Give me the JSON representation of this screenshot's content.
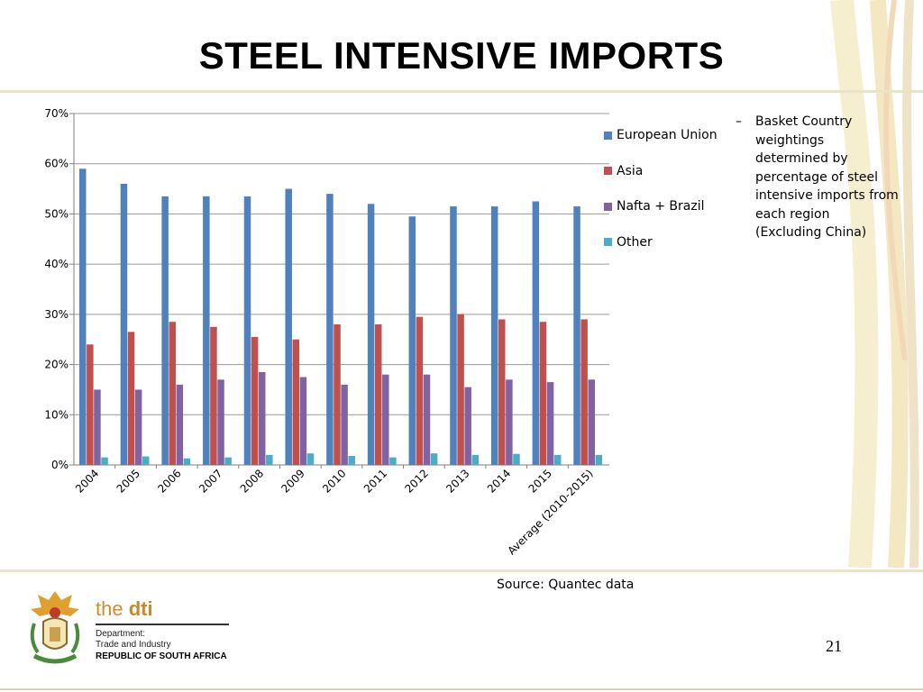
{
  "slide": {
    "title": "STEEL INTENSIVE IMPORTS",
    "note": "Basket Country weightings determined by percentage of steel intensive imports from each region (Excluding China)",
    "note_bullet": "–",
    "source": "Source:  Quantec data",
    "page_number": "21",
    "logo": {
      "brand_the": "the ",
      "brand_dti": "dti",
      "line1": "Department:",
      "line2": "Trade and Industry",
      "line3": "REPUBLIC OF SOUTH AFRICA"
    }
  },
  "chart_data": {
    "type": "bar",
    "categories": [
      "2004",
      "2005",
      "2006",
      "2007",
      "2008",
      "2009",
      "2010",
      "2011",
      "2012",
      "2013",
      "2014",
      "2015",
      "Average (2010-2015)"
    ],
    "series": [
      {
        "name": "European Union",
        "color": "#4f81bd",
        "values": [
          59,
          56,
          53.5,
          53.5,
          53.5,
          55,
          54,
          52,
          49.5,
          51.5,
          51.5,
          52.5,
          51.5
        ]
      },
      {
        "name": "Asia",
        "color": "#c0504d",
        "values": [
          24,
          26.5,
          28.5,
          27.5,
          25.5,
          25,
          28,
          28,
          29.5,
          30,
          29,
          28.5,
          29
        ]
      },
      {
        "name": "Nafta + Brazil",
        "color": "#8064a2",
        "values": [
          15,
          15,
          16,
          17,
          18.5,
          17.5,
          16,
          18,
          18,
          15.5,
          17,
          16.5,
          17
        ]
      },
      {
        "name": "Other",
        "color": "#4bacc6",
        "values": [
          1.5,
          1.7,
          1.3,
          1.5,
          2,
          2.3,
          1.8,
          1.5,
          2.3,
          2,
          2.2,
          2,
          2
        ]
      }
    ],
    "ylim": [
      0,
      70
    ],
    "yticks": [
      "0%",
      "10%",
      "20%",
      "30%",
      "40%",
      "50%",
      "60%",
      "70%"
    ],
    "grid": true,
    "legend_position": "right"
  }
}
